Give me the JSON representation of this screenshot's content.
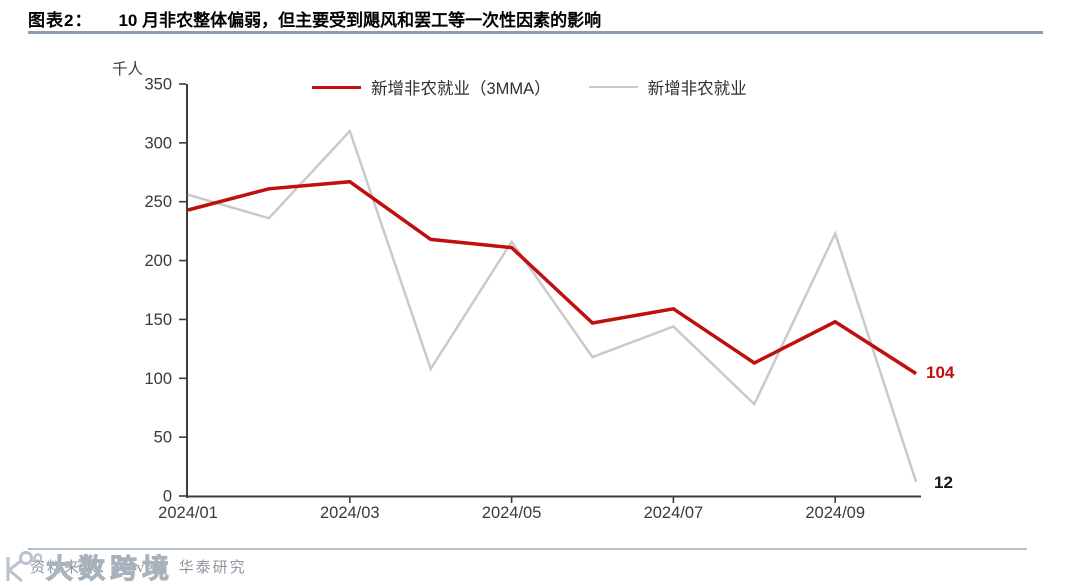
{
  "header": {
    "figure_label": "图表2：",
    "title": "10 月非农整体偏弱，但主要受到飓风和罢工等一次性因素的影响"
  },
  "chart_data": {
    "type": "line",
    "unit_label": "千人",
    "x": [
      "2024/01",
      "2024/02",
      "2024/03",
      "2024/04",
      "2024/05",
      "2024/06",
      "2024/07",
      "2024/08",
      "2024/09",
      "2024/10"
    ],
    "x_tick_labels": [
      "2024/01",
      "2024/03",
      "2024/05",
      "2024/07",
      "2024/09"
    ],
    "yticks": [
      0,
      50,
      100,
      150,
      200,
      250,
      300,
      350
    ],
    "ylim": [
      0,
      350
    ],
    "grid": false,
    "legend_position": "top",
    "series": [
      {
        "id": "nonfarm-3mma",
        "name": "新增非农就业（3MMA）",
        "color": "#c00f0f",
        "stroke_width": 3.5,
        "values": [
          243,
          261,
          267,
          218,
          211,
          147,
          159,
          113,
          148,
          104
        ],
        "end_label": "104",
        "end_label_color": "#c00f0f"
      },
      {
        "id": "nonfarm-monthly",
        "name": "新增非农就业",
        "color": "#cacaca",
        "stroke_width": 2.5,
        "values": [
          256,
          236,
          310,
          108,
          216,
          118,
          144,
          78,
          223,
          12
        ],
        "end_label": "12",
        "end_label_color": "#1a1a1a"
      }
    ],
    "axis_color": "#3d3d3d",
    "tick_label_color": "#3a3a3a"
  },
  "footer": {
    "source": "资料来源：Haver，华泰研究",
    "watermark": "大数跨境"
  }
}
